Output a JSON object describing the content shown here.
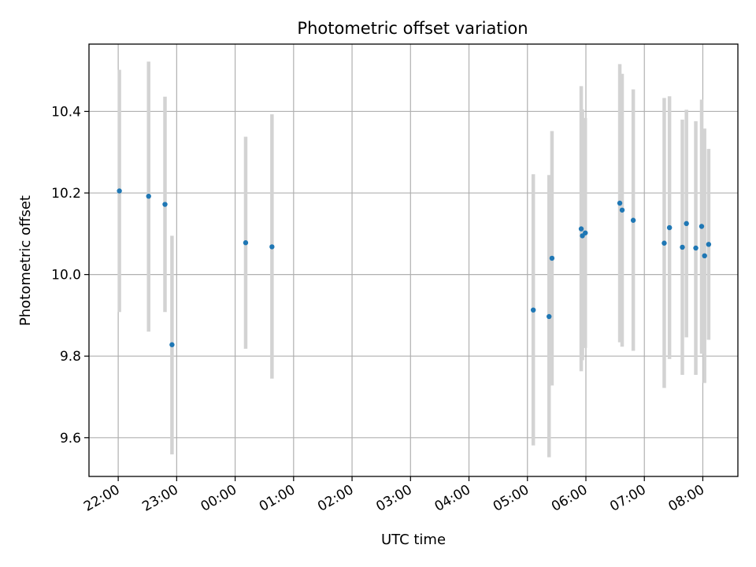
{
  "chart_data": {
    "type": "scatter",
    "title": "Photometric offset variation",
    "xlabel": "UTC time",
    "ylabel": "Photometric offset",
    "x_ticks": [
      "22:00",
      "23:00",
      "00:00",
      "01:00",
      "02:00",
      "03:00",
      "04:00",
      "05:00",
      "06:00",
      "07:00",
      "08:00"
    ],
    "x_tick_hours": [
      22,
      23,
      24,
      25,
      26,
      27,
      28,
      29,
      30,
      31,
      32
    ],
    "xlim": [
      21.5,
      32.6
    ],
    "y_ticks": [
      "9.6",
      "9.8",
      "10.0",
      "10.2",
      "10.4"
    ],
    "y_tick_values": [
      9.6,
      9.8,
      10.0,
      10.2,
      10.4
    ],
    "ylim": [
      9.505,
      10.565
    ],
    "grid": true,
    "colors": {
      "point": "#1f77b4",
      "errorbar": "#d3d3d3",
      "grid": "#b0b0b0"
    },
    "points": [
      {
        "x": 22.02,
        "y": 10.205,
        "lo": 9.908,
        "hi": 10.502
      },
      {
        "x": 22.52,
        "y": 10.192,
        "lo": 9.86,
        "hi": 10.522
      },
      {
        "x": 22.8,
        "y": 10.172,
        "lo": 9.908,
        "hi": 10.436
      },
      {
        "x": 22.92,
        "y": 9.828,
        "lo": 9.559,
        "hi": 10.095
      },
      {
        "x": 24.18,
        "y": 10.078,
        "lo": 9.818,
        "hi": 10.338
      },
      {
        "x": 24.63,
        "y": 10.068,
        "lo": 9.745,
        "hi": 10.393
      },
      {
        "x": 29.1,
        "y": 9.913,
        "lo": 9.581,
        "hi": 10.246
      },
      {
        "x": 29.37,
        "y": 9.897,
        "lo": 9.552,
        "hi": 10.244
      },
      {
        "x": 29.42,
        "y": 10.04,
        "lo": 9.728,
        "hi": 10.352
      },
      {
        "x": 29.92,
        "y": 10.112,
        "lo": 9.763,
        "hi": 10.462
      },
      {
        "x": 29.94,
        "y": 10.095,
        "lo": 9.79,
        "hi": 10.405
      },
      {
        "x": 29.99,
        "y": 10.102,
        "lo": 9.82,
        "hi": 10.384
      },
      {
        "x": 30.58,
        "y": 10.175,
        "lo": 9.834,
        "hi": 10.516
      },
      {
        "x": 30.62,
        "y": 10.158,
        "lo": 9.823,
        "hi": 10.492
      },
      {
        "x": 30.81,
        "y": 10.133,
        "lo": 9.813,
        "hi": 10.454
      },
      {
        "x": 31.34,
        "y": 10.077,
        "lo": 9.722,
        "hi": 10.433
      },
      {
        "x": 31.43,
        "y": 10.115,
        "lo": 9.793,
        "hi": 10.437
      },
      {
        "x": 31.65,
        "y": 10.067,
        "lo": 9.754,
        "hi": 10.38
      },
      {
        "x": 31.72,
        "y": 10.125,
        "lo": 9.846,
        "hi": 10.404
      },
      {
        "x": 31.88,
        "y": 10.065,
        "lo": 9.754,
        "hi": 10.376
      },
      {
        "x": 31.98,
        "y": 10.118,
        "lo": 9.806,
        "hi": 10.429
      },
      {
        "x": 32.03,
        "y": 10.046,
        "lo": 9.734,
        "hi": 10.358
      },
      {
        "x": 32.1,
        "y": 10.074,
        "lo": 9.84,
        "hi": 10.308
      }
    ]
  }
}
